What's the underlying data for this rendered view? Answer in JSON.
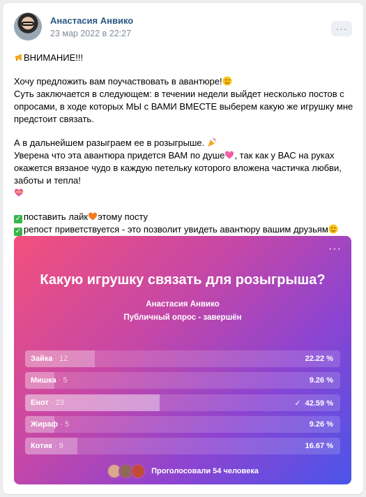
{
  "post": {
    "author": "Анастасия Анвико",
    "date": "23 мар 2022 в 22:27",
    "more_label": "···",
    "lines": {
      "l1": "ВНИМАНИЕ!!!",
      "l2": "Хочу предложить вам поучаствовать в авантюре!",
      "l3": "Суть заключается в следующем: в течении недели выйдет несколько постов с опросами, в ходе которых МЫ с ВАМИ ВМЕСТЕ выберем какую же игрушку мне предстоит связать.",
      "l4": "А в дальнейшем разыграем ее в розыгрыше.",
      "l5a": "Уверена что эта авантюра придется ВАМ по душе",
      "l5b": ", так как у ВАС на руках окажется вязаное чудо в каждую петельку которого вложена частичка любви, заботы и тепла!",
      "l6a": "поставить лайк",
      "l6b": "этому посту",
      "l7": "репост приветствуется - это позволит увидеть авантюру вашим друзьям"
    }
  },
  "poll": {
    "more_label": "···",
    "question": "Какую игрушку связать для розыгрыша?",
    "author": "Анастасия Анвико",
    "status": "Публичный опрос - завершён",
    "answers": [
      {
        "label": "Зайка",
        "count": " · 12",
        "pct": "22.22 %",
        "value": 22.22
      },
      {
        "label": "Мишка",
        "count": " · 5",
        "pct": "9.26 %",
        "value": 9.26
      },
      {
        "label": "Енот",
        "count": " · 23",
        "pct": "42.59 %",
        "value": 42.59,
        "selected": true
      },
      {
        "label": "Жираф",
        "count": " · 5",
        "pct": "9.26 %",
        "value": 9.26
      },
      {
        "label": "Котик",
        "count": " · 9",
        "pct": "16.67 %",
        "value": 16.67
      }
    ],
    "voted_prefix": "Проголосовали",
    "voted_count": "54",
    "voted_suffix": "человека"
  },
  "colors": {
    "link": "#2a5885",
    "meta": "#818c99",
    "check": "#3ab54a"
  }
}
